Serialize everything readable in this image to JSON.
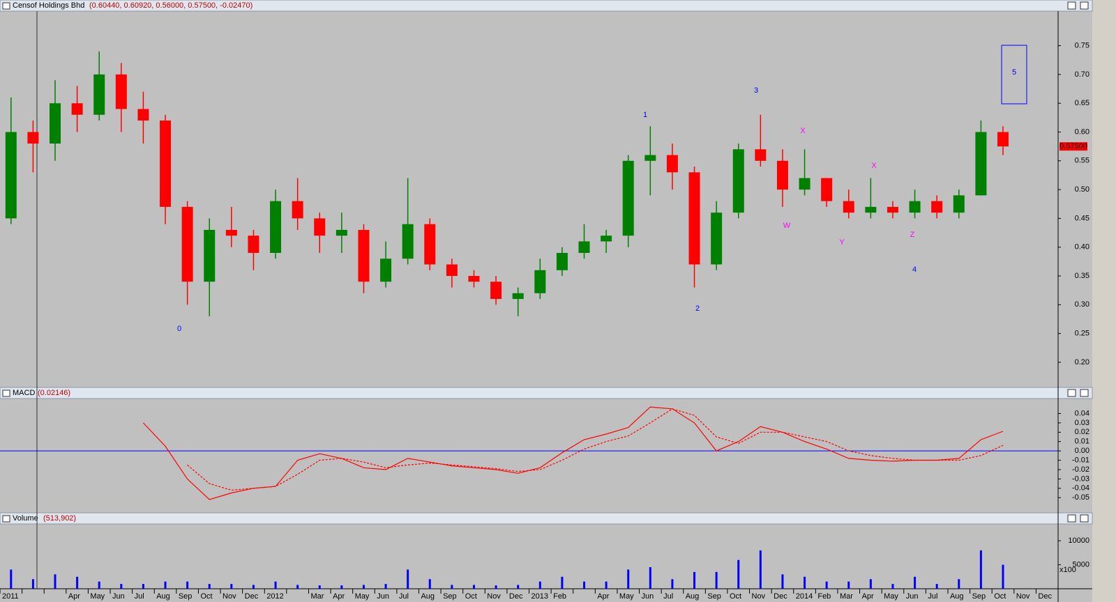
{
  "header": {
    "title": "Censof Holdings Bhd",
    "values": "(0.60440, 0.60920, 0.56000, 0.57500, -0.02470)"
  },
  "chart_data": [
    {
      "type": "candlestick",
      "categories": [
        "2011",
        null,
        null,
        "Apr",
        "May",
        "Jun",
        "Jul",
        "Aug",
        "Sep",
        "Oct",
        "Nov",
        "Dec",
        "2012",
        null,
        "Mar",
        "Apr",
        "May",
        "Jun",
        "Jul",
        "Aug",
        "Sep",
        "Oct",
        "Nov",
        "Dec",
        "2013",
        "Feb",
        null,
        "Apr",
        "May",
        "Jun",
        "Jul",
        "Aug",
        "Sep",
        "Oct",
        "Nov",
        "Dec",
        "2014",
        "Feb",
        "Mar",
        "Apr",
        "May",
        "Jun",
        "Jul",
        "Aug",
        "Sep",
        "Oct",
        "Nov",
        "Dec"
      ],
      "open": [
        0.45,
        0.6,
        0.58,
        0.65,
        0.63,
        0.7,
        0.64,
        0.62,
        0.47,
        0.34,
        0.43,
        0.42,
        0.39,
        0.48,
        0.45,
        0.42,
        0.43,
        0.34,
        0.38,
        0.44,
        0.37,
        0.35,
        0.34,
        0.31,
        0.32,
        0.36,
        0.39,
        0.41,
        0.42,
        0.55,
        0.56,
        0.53,
        0.37,
        0.46,
        0.57,
        0.55,
        0.5,
        0.52,
        0.48,
        0.46,
        0.47,
        0.46,
        0.48,
        0.46,
        0.49,
        0.6,
        null,
        null
      ],
      "high": [
        0.66,
        0.62,
        0.69,
        0.68,
        0.74,
        0.72,
        0.67,
        0.63,
        0.48,
        0.45,
        0.47,
        0.43,
        0.5,
        0.52,
        0.46,
        0.46,
        0.44,
        0.41,
        0.52,
        0.45,
        0.38,
        0.36,
        0.35,
        0.33,
        0.38,
        0.4,
        0.44,
        0.43,
        0.56,
        0.61,
        0.58,
        0.54,
        0.48,
        0.58,
        0.63,
        0.57,
        0.57,
        0.52,
        0.5,
        0.52,
        0.48,
        0.5,
        0.49,
        0.5,
        0.62,
        0.61,
        null,
        null
      ],
      "low": [
        0.44,
        0.53,
        0.55,
        0.6,
        0.62,
        0.6,
        0.58,
        0.44,
        0.3,
        0.28,
        0.4,
        0.36,
        0.38,
        0.43,
        0.39,
        0.39,
        0.32,
        0.33,
        0.37,
        0.36,
        0.33,
        0.33,
        0.3,
        0.28,
        0.31,
        0.35,
        0.38,
        0.39,
        0.4,
        0.49,
        0.5,
        0.33,
        0.36,
        0.45,
        0.54,
        0.47,
        0.49,
        0.47,
        0.45,
        0.45,
        0.45,
        0.45,
        0.45,
        0.45,
        0.49,
        0.56,
        null,
        null
      ],
      "close": [
        0.6,
        0.58,
        0.65,
        0.63,
        0.7,
        0.64,
        0.62,
        0.47,
        0.34,
        0.43,
        0.42,
        0.39,
        0.48,
        0.45,
        0.42,
        0.43,
        0.34,
        0.38,
        0.44,
        0.37,
        0.35,
        0.34,
        0.31,
        0.32,
        0.36,
        0.39,
        0.41,
        0.42,
        0.55,
        0.56,
        0.53,
        0.37,
        0.46,
        0.57,
        0.55,
        0.5,
        0.52,
        0.48,
        0.46,
        0.47,
        0.46,
        0.48,
        0.46,
        0.49,
        0.6,
        0.575,
        null,
        null
      ],
      "up_color": "#008000",
      "down_color": "#ff0000",
      "ylim": [
        0.16,
        0.81
      ],
      "yticks": [
        {
          "value": 0.2,
          "label": "0.20"
        },
        0.25,
        {
          "value": 0.3,
          "label": "0.30"
        },
        0.35,
        {
          "value": 0.4,
          "label": "0.40"
        },
        0.45,
        {
          "value": 0.5,
          "label": "0.50"
        },
        0.55,
        {
          "value": 0.6,
          "label": "0.60"
        },
        0.65,
        {
          "value": 0.7,
          "label": "0.70"
        },
        0.75
      ],
      "last_price_label": "0.57500",
      "annotations": [
        {
          "text": "0",
          "color": "#0000ff"
        },
        {
          "text": "1",
          "color": "#0000ff"
        },
        {
          "text": "2",
          "color": "#0000ff"
        },
        {
          "text": "3",
          "color": "#0000ff"
        },
        {
          "text": "4",
          "color": "#0000ff"
        },
        {
          "text": "5",
          "color": "#0000ff"
        },
        {
          "text": "W",
          "color": "#ff00ff"
        },
        {
          "text": "X",
          "color": "#ff00ff"
        },
        {
          "text": "Y",
          "color": "#ff00ff"
        },
        {
          "text": "X",
          "color": "#ff00ff"
        },
        {
          "text": "Z",
          "color": "#ff00ff"
        }
      ]
    },
    {
      "type": "line",
      "title": "MACD",
      "value_label": "(0.02146)",
      "series": [
        {
          "color": "#ff0000",
          "dashed": false,
          "values": [
            null,
            null,
            null,
            null,
            null,
            null,
            0.03,
            0.005,
            -0.03,
            -0.052,
            -0.045,
            -0.04,
            -0.038,
            -0.01,
            -0.003,
            -0.008,
            -0.018,
            -0.02,
            -0.008,
            -0.012,
            -0.016,
            -0.018,
            -0.02,
            -0.024,
            -0.018,
            -0.002,
            0.012,
            0.018,
            0.025,
            0.047,
            0.045,
            0.03,
            0.0,
            0.01,
            0.026,
            0.02,
            0.01,
            0.002,
            -0.008,
            -0.01,
            -0.011,
            -0.01,
            -0.01,
            -0.008,
            0.012,
            0.021,
            null,
            null
          ]
        },
        {
          "color": "#ff0000",
          "dashed": true,
          "values": [
            null,
            null,
            null,
            null,
            null,
            null,
            null,
            null,
            -0.015,
            -0.035,
            -0.042,
            -0.04,
            -0.038,
            -0.025,
            -0.01,
            -0.008,
            -0.012,
            -0.018,
            -0.015,
            -0.013,
            -0.015,
            -0.017,
            -0.019,
            -0.022,
            -0.02,
            -0.01,
            0.002,
            0.01,
            0.016,
            0.03,
            0.045,
            0.038,
            0.015,
            0.008,
            0.02,
            0.02,
            0.015,
            0.01,
            0.0,
            -0.005,
            -0.008,
            -0.01,
            -0.01,
            -0.01,
            -0.005,
            0.006,
            null,
            null
          ]
        }
      ],
      "zero_line_color": "#0000ff",
      "ylim": [
        -0.064,
        0.056
      ],
      "yticks": [
        0.04,
        0.03,
        0.02,
        0.01,
        {
          "value": 0,
          "label": "0.00"
        },
        -0.01,
        -0.02,
        -0.03,
        -0.04,
        -0.05
      ]
    },
    {
      "type": "bar",
      "title": "Volume",
      "value_label": "(513,902)",
      "unit_label": "x100",
      "color": "#0000ff",
      "values": [
        4000,
        2000,
        3000,
        2500,
        1500,
        1000,
        1000,
        1500,
        1500,
        1000,
        1000,
        800,
        1500,
        800,
        700,
        700,
        800,
        1000,
        4000,
        2000,
        800,
        800,
        700,
        800,
        1500,
        2500,
        1500,
        1500,
        4000,
        4500,
        2000,
        3500,
        3500,
        6000,
        8000,
        3000,
        2500,
        1500,
        1500,
        2000,
        1000,
        2500,
        1000,
        2000,
        8000,
        5000,
        null,
        null
      ],
      "ylim": [
        0,
        13500
      ],
      "yticks": [
        5000,
        10000
      ]
    }
  ]
}
